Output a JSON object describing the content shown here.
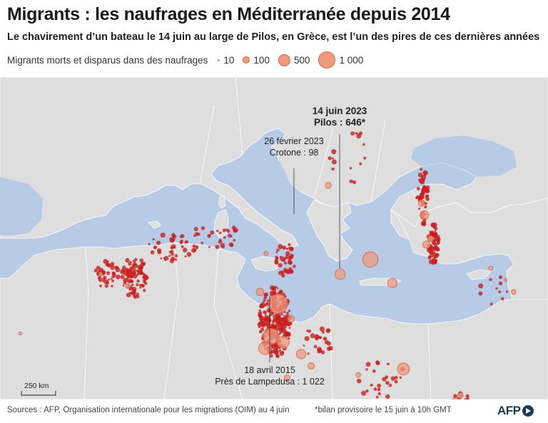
{
  "title": "Migrants : les naufrages en Méditerranée depuis 2014",
  "subtitle": "Le chavirement d’un bateau le 14 juin au large de Pilos, en Grèce, est l’un des pires de ces dernières années",
  "legend": {
    "label": "Migrants morts et disparus dans des naufrages",
    "items": [
      {
        "value": 10,
        "label": "10"
      },
      {
        "value": 100,
        "label": "100"
      },
      {
        "value": 500,
        "label": "500"
      },
      {
        "value": 1000,
        "label": "1 000"
      }
    ]
  },
  "colors": {
    "sea": "#b7cbe6",
    "land": "#dedede",
    "border": "#ffffff",
    "bubble_fill": "#ee9a7e",
    "bubble_stroke": "#d46a4c",
    "dot": "#c81e1e"
  },
  "callouts": {
    "pilos": {
      "date": "14 juin 2023",
      "place": "Pilos : 646*"
    },
    "crotone": {
      "date": "26 février 2023",
      "place": "Crotone : 98"
    },
    "lampedusa": {
      "date": "18 avril 2015",
      "place": "Près de Lampedusa : 1 022"
    }
  },
  "scale": {
    "label": "250 km"
  },
  "footer": {
    "sources": "Sources : AFP, Organisation internationale pour les migrations (OIM) au 4 juin",
    "note": "*bilan provisoire le 15 juin à 10h GMT",
    "logo": "AFP"
  },
  "incidents": [
    {
      "lon": 12.1,
      "lat": 34.9,
      "deaths": 1022,
      "label": "Près de Lampedusa"
    },
    {
      "lon": 21.3,
      "lat": 36.4,
      "deaths": 646,
      "label": "Pilos"
    },
    {
      "lon": 17.1,
      "lat": 38.9,
      "deaths": 98,
      "label": "Crotone"
    },
    {
      "lon": 11.4,
      "lat": 33.8,
      "deaths": 700
    },
    {
      "lon": 10.8,
      "lat": 33.4,
      "deaths": 450
    },
    {
      "lon": 12.6,
      "lat": 33.6,
      "deaths": 400
    },
    {
      "lon": 24.6,
      "lat": 32.7,
      "deaths": 400
    },
    {
      "lon": 23.5,
      "lat": 35.6,
      "deaths": 250
    },
    {
      "lon": 14.4,
      "lat": 33.2,
      "deaths": 250
    },
    {
      "lon": 18.3,
      "lat": 35.9,
      "deaths": 300
    },
    {
      "lon": 15.4,
      "lat": 32.8,
      "deaths": 120
    },
    {
      "lon": 29.8,
      "lat": 31.6,
      "deaths": 150
    },
    {
      "lon": 30.3,
      "lat": 31.8,
      "deaths": 80
    },
    {
      "lon": 26.7,
      "lat": 37.9,
      "deaths": 200
    },
    {
      "lon": 26.9,
      "lat": 36.9,
      "deaths": 150
    },
    {
      "lon": 35.6,
      "lat": 35.3,
      "deaths": 60
    },
    {
      "lon": 34.8,
      "lat": 35.7,
      "deaths": 30
    },
    {
      "lon": 33.3,
      "lat": 36.1,
      "deaths": 50
    },
    {
      "lon": 13.4,
      "lat": 34.4,
      "deaths": 120
    },
    {
      "lon": 10.3,
      "lat": 35.3,
      "deaths": 160
    },
    {
      "lon": 13.0,
      "lat": 32.4,
      "deaths": 90
    },
    {
      "lon": 20.1,
      "lat": 32.5,
      "deaths": 60
    },
    {
      "lon": 26.4,
      "lat": 38.3,
      "deaths": 110
    },
    {
      "lon": 27.3,
      "lat": 37.1,
      "deaths": 90
    },
    {
      "lon": -2.9,
      "lat": 35.5,
      "deaths": 60
    },
    {
      "lon": -5.6,
      "lat": 35.9,
      "deaths": 40
    },
    {
      "lon": -13.6,
      "lat": 33.9,
      "deaths": 30
    },
    {
      "lon": 10.9,
      "lat": 36.6,
      "deaths": 50
    }
  ],
  "dot_clusters": [
    {
      "lon": -5.0,
      "lat": 35.9,
      "count": 40,
      "spread_lon": 1.2,
      "spread_lat": 0.5
    },
    {
      "lon": -2.2,
      "lat": 35.8,
      "count": 90,
      "spread_lon": 1.3,
      "spread_lat": 0.7
    },
    {
      "lon": 1.5,
      "lat": 36.8,
      "count": 45,
      "spread_lon": 2.5,
      "spread_lat": 0.5
    },
    {
      "lon": 6.0,
      "lat": 37.2,
      "count": 30,
      "spread_lon": 2.8,
      "spread_lat": 0.4
    },
    {
      "lon": 11.8,
      "lat": 34.3,
      "count": 260,
      "spread_lon": 1.6,
      "spread_lat": 1.2
    },
    {
      "lon": 12.8,
      "lat": 36.4,
      "count": 40,
      "spread_lon": 1.0,
      "spread_lat": 0.6
    },
    {
      "lon": 16.1,
      "lat": 33.6,
      "count": 25,
      "spread_lon": 1.5,
      "spread_lat": 0.6
    },
    {
      "lon": 22.5,
      "lat": 32.3,
      "count": 25,
      "spread_lon": 2.5,
      "spread_lat": 0.7
    },
    {
      "lon": 26.5,
      "lat": 38.5,
      "count": 55,
      "spread_lon": 0.6,
      "spread_lat": 1.0
    },
    {
      "lon": 27.6,
      "lat": 36.9,
      "count": 70,
      "spread_lon": 0.5,
      "spread_lat": 0.7
    },
    {
      "lon": 30.5,
      "lat": 31.6,
      "count": 18,
      "spread_lon": 1.0,
      "spread_lat": 0.3
    },
    {
      "lon": 19.0,
      "lat": 39.8,
      "count": 15,
      "spread_lon": 1.8,
      "spread_lat": 1.4
    },
    {
      "lon": 33.5,
      "lat": 35.4,
      "count": 10,
      "spread_lon": 1.5,
      "spread_lat": 0.6
    }
  ]
}
